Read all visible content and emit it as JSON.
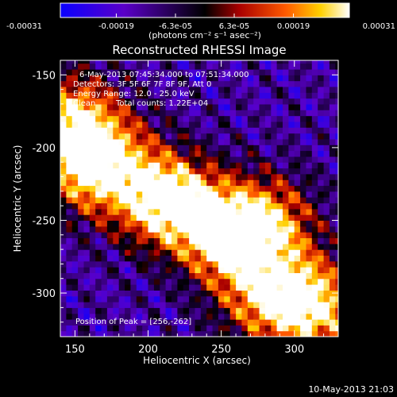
{
  "chart_data": {
    "type": "heatmap",
    "title": "Reconstructed RHESSI Image",
    "xlabel": "Heliocentric X (arcsec)",
    "ylabel": "Heliocentric Y (arcsec)",
    "xlim": [
      140,
      330
    ],
    "ylim": [
      -330,
      -140
    ],
    "x_ticks": [
      150,
      200,
      250,
      300
    ],
    "y_ticks": [
      -150,
      -200,
      -250,
      -300
    ],
    "colorbar": {
      "range": [
        -0.00031,
        0.00031
      ],
      "tick_values": [
        -0.00031,
        -0.00019,
        -6.3e-05,
        6.3e-05,
        0.00019,
        0.00031
      ],
      "tick_labels": [
        "-0.00031",
        "-0.00019",
        "-6.3e-05",
        "6.3e-05",
        "0.00019",
        "0.00031"
      ],
      "unit_label": "(photons cm⁻² s⁻¹ asec⁻²)",
      "colors": [
        "#0a00ff",
        "#5a00c8",
        "#000000",
        "#aa0000",
        "#ff5a00",
        "#ffd000",
        "#ffffff"
      ]
    },
    "annotations": {
      "time_range": "6-May-2013 07:45:34.000 to 07:51:34.000",
      "detectors": "Detectors: 3F 5F 6F 7F 8F 9F, Att 0",
      "energy_range": "Energy Range: 12.0 - 25.0 keV",
      "method": "Clean",
      "total_counts": "Total counts: 1.22E+04",
      "peak_position": "Position of Peak = [256,-262]"
    },
    "peak": [
      256,
      -262
    ],
    "sources": [
      {
        "x": 148,
        "y": -180,
        "strength": 1.0
      },
      {
        "x": 158,
        "y": -215,
        "strength": 0.85
      },
      {
        "x": 205,
        "y": -235,
        "strength": 0.95
      },
      {
        "x": 230,
        "y": -240,
        "strength": 0.7
      },
      {
        "x": 256,
        "y": -262,
        "strength": 1.15
      },
      {
        "x": 285,
        "y": -250,
        "strength": 0.75
      },
      {
        "x": 300,
        "y": -300,
        "strength": 0.8
      },
      {
        "x": 320,
        "y": -315,
        "strength": 0.7
      },
      {
        "x": 178,
        "y": -205,
        "strength": 0.5
      },
      {
        "x": 275,
        "y": -305,
        "strength": 0.55
      }
    ]
  },
  "footer": {
    "timestamp": "10-May-2013 21:03"
  }
}
